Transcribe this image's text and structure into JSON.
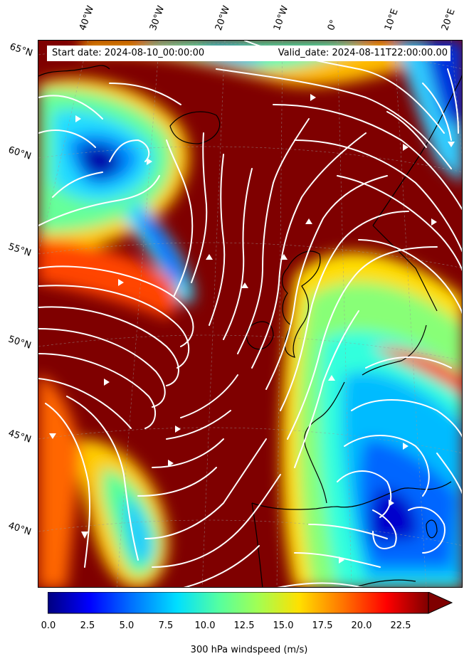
{
  "header": {
    "start_date": "Start date: 2024-08-10_00:00:00",
    "valid_date": "Valid_date: 2024-08-11T22:00:00.00"
  },
  "map": {
    "longitude_labels": [
      "40°W",
      "30°W",
      "20°W",
      "10°W",
      "0°",
      "10°E",
      "20°E"
    ],
    "latitude_labels": [
      "65°N",
      "60°N",
      "55°N",
      "50°N",
      "45°N",
      "40°N"
    ],
    "field": "300 hPa windspeed",
    "colormap": "jet",
    "streamline_color": "#ffffff",
    "coastline_color": "#000000",
    "gridlines": true
  },
  "colorbar": {
    "label": "300 hPa windspeed (m/s)",
    "ticks": [
      "0.0",
      "2.5",
      "5.0",
      "7.5",
      "10.0",
      "12.5",
      "15.0",
      "17.5",
      "20.0",
      "22.5"
    ],
    "range": [
      0,
      25
    ],
    "extend": "max"
  }
}
